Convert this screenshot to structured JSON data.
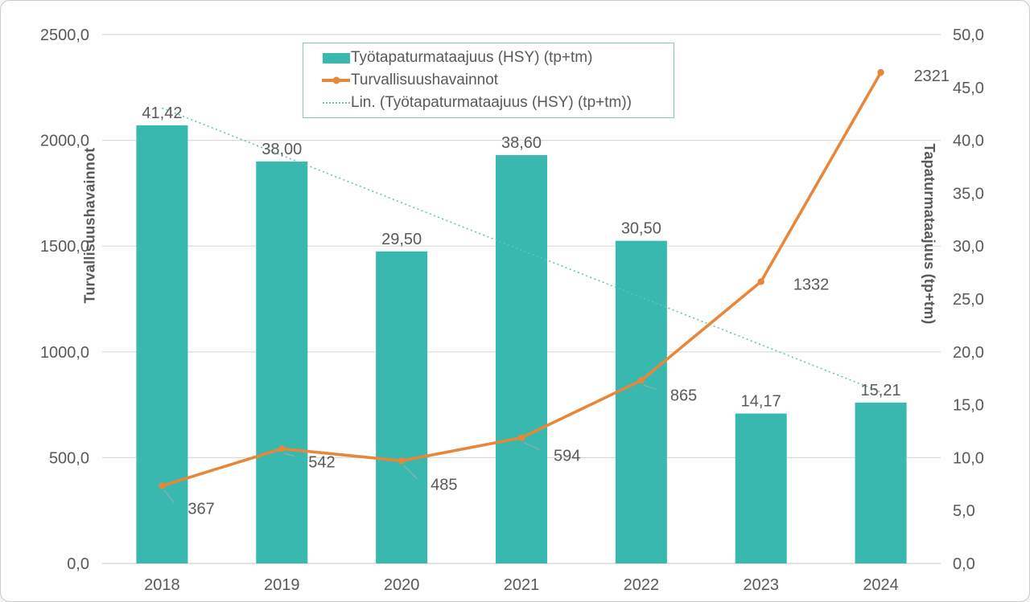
{
  "figure": {
    "background": "#ffffff",
    "border_color": "#cbcbcb",
    "grid_color": "#d9d9d9",
    "text_color": "#595959",
    "leader_color": "#aaaaaa"
  },
  "chart_data": {
    "type": "combo-bar-line",
    "categories": [
      "2018",
      "2019",
      "2020",
      "2021",
      "2022",
      "2023",
      "2024"
    ],
    "series": [
      {
        "name": "Työtapaturmataajuus (HSY) (tp+tm)",
        "type": "bar",
        "axis": "right",
        "color": "#38b8af",
        "values": [
          41.42,
          38.0,
          29.5,
          38.6,
          30.5,
          14.17,
          15.21
        ],
        "labels": [
          "41,42",
          "38,00",
          "29,50",
          "38,60",
          "30,50",
          "14,17",
          "15,21"
        ]
      },
      {
        "name": "Turvallisuushavainnot",
        "type": "line",
        "axis": "left",
        "color": "#e78739",
        "values": [
          367,
          542,
          485,
          594,
          865,
          1332,
          2321
        ],
        "labels": [
          "367",
          "542",
          "485",
          "594",
          "865",
          "1332",
          "2321"
        ]
      },
      {
        "name": "Lin. (Työtapaturmataajuus (HSY) (tp+tm))",
        "type": "linear-trendline",
        "of_series": 0,
        "axis": "right",
        "color": "#5fc4bd"
      }
    ],
    "left_axis": {
      "title": "Turvallisuushavainnot",
      "min": 0,
      "max": 2500,
      "step": 500,
      "tick_labels": [
        "0,0",
        "500,0",
        "1000,0",
        "1500,0",
        "2000,0",
        "2500,0"
      ]
    },
    "right_axis": {
      "title": "Tapaturmataajuus (tp+tm)",
      "min": 0,
      "max": 50,
      "step": 5,
      "tick_labels": [
        "0,0",
        "5,0",
        "10,0",
        "15,0",
        "20,0",
        "25,0",
        "30,0",
        "35,0",
        "40,0",
        "45,0",
        "50,0"
      ]
    },
    "legend_position": "top-center",
    "grid": "horizontal"
  }
}
